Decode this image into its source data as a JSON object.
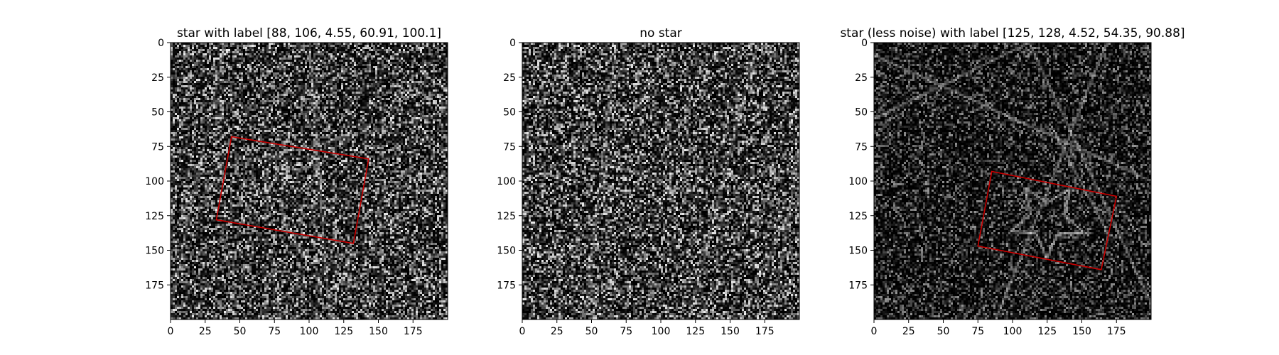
{
  "figure": {
    "background": "#ffffff",
    "image_background": "#0a0a0a",
    "box_color": "#cc0000"
  },
  "chart_data": [
    {
      "type": "heatmap",
      "title": "star with label [88, 106, 4.55, 60.91, 100.1]",
      "xlim": [
        0,
        200
      ],
      "ylim": [
        200,
        0
      ],
      "xticks": [
        "0",
        "25",
        "50",
        "75",
        "100",
        "125",
        "150",
        "175"
      ],
      "yticks": [
        "0",
        "25",
        "50",
        "75",
        "100",
        "125",
        "150",
        "175"
      ],
      "noise_level": "high",
      "streaks": [
        [
          [
            0,
            100
          ],
          [
            200,
            50
          ]
        ],
        [
          [
            100,
            0
          ],
          [
            115,
            200
          ]
        ],
        [
          [
            60,
            200
          ],
          [
            200,
            100
          ]
        ],
        [
          [
            0,
            190
          ],
          [
            40,
            0
          ]
        ]
      ],
      "star": {
        "cx": 88,
        "cy": 106,
        "r": 28,
        "rotation_deg": 100.1,
        "visible": false
      },
      "box": [
        [
          44,
          68
        ],
        [
          143,
          84
        ],
        [
          132,
          145
        ],
        [
          33,
          128
        ]
      ]
    },
    {
      "type": "heatmap",
      "title": "no star",
      "xlim": [
        0,
        200
      ],
      "ylim": [
        200,
        0
      ],
      "xticks": [
        "0",
        "25",
        "50",
        "75",
        "100",
        "125",
        "150",
        "175"
      ],
      "yticks": [
        "0",
        "25",
        "50",
        "75",
        "100",
        "125",
        "150",
        "175"
      ],
      "noise_level": "high",
      "streaks": [
        [
          [
            0,
            65
          ],
          [
            200,
            138
          ]
        ],
        [
          [
            68,
            0
          ],
          [
            45,
            200
          ]
        ],
        [
          [
            180,
            200
          ],
          [
            200,
            80
          ]
        ],
        [
          [
            120,
            200
          ],
          [
            170,
            0
          ]
        ]
      ],
      "star": null,
      "box": null
    },
    {
      "type": "heatmap",
      "title": "star (less noise) with label [125, 128, 4.52, 54.35, 90.88]",
      "xlim": [
        0,
        200
      ],
      "ylim": [
        200,
        0
      ],
      "xticks": [
        "0",
        "25",
        "50",
        "75",
        "100",
        "125",
        "150",
        "175"
      ],
      "yticks": [
        "0",
        "25",
        "50",
        "75",
        "100",
        "125",
        "150",
        "175"
      ],
      "noise_level": "low",
      "streaks": [
        [
          [
            0,
            9
          ],
          [
            200,
            100
          ]
        ],
        [
          [
            0,
            55
          ],
          [
            112,
            0
          ]
        ],
        [
          [
            112,
            0
          ],
          [
            200,
            188
          ]
        ],
        [
          [
            168,
            0
          ],
          [
            88,
            200
          ]
        ],
        [
          [
            128,
            60
          ],
          [
            170,
            140
          ]
        ]
      ],
      "star": {
        "cx": 125,
        "cy": 128,
        "r": 28,
        "rotation_deg": 90.88,
        "visible": true
      },
      "box": [
        [
          85,
          93
        ],
        [
          175,
          111
        ],
        [
          164,
          164
        ],
        [
          75,
          147
        ]
      ]
    }
  ]
}
